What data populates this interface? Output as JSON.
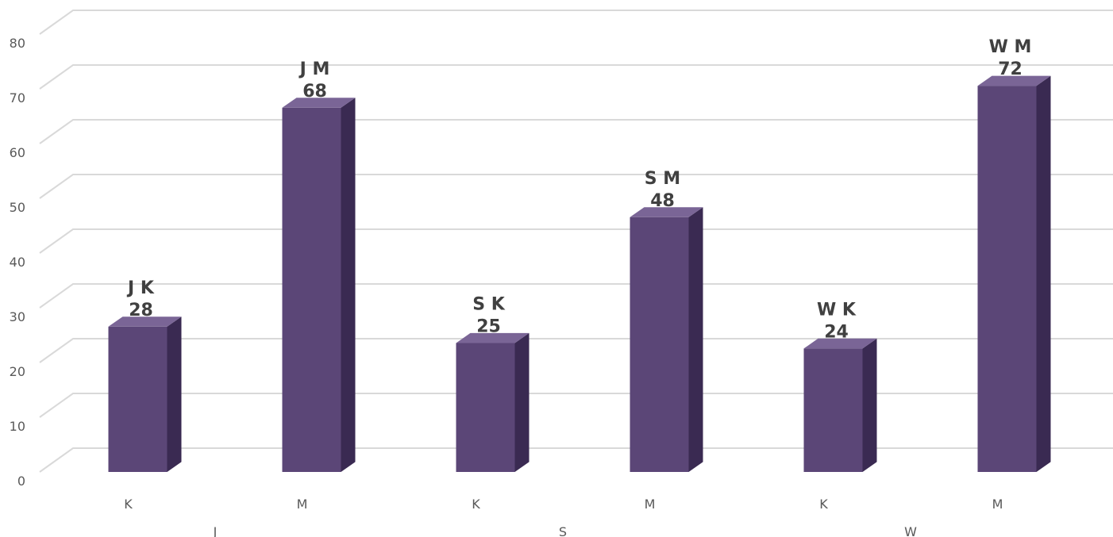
{
  "chart_data": {
    "type": "bar",
    "style": "3d-clustered-column",
    "groups": [
      {
        "label": "J",
        "categories": [
          "K",
          "M"
        ]
      },
      {
        "label": "S",
        "categories": [
          "K",
          "M"
        ]
      },
      {
        "label": "W",
        "categories": [
          "K",
          "M"
        ]
      }
    ],
    "categories": [
      "K",
      "M",
      "K",
      "M",
      "K",
      "M"
    ],
    "values": [
      28,
      68,
      25,
      48,
      24,
      72
    ],
    "data_labels": [
      {
        "name": "J K",
        "value": "28"
      },
      {
        "name": "J M",
        "value": "68"
      },
      {
        "name": "S K",
        "value": "25"
      },
      {
        "name": "S M",
        "value": "48"
      },
      {
        "name": "W K",
        "value": "24"
      },
      {
        "name": "W M",
        "value": "72"
      }
    ],
    "ylim": [
      0,
      80
    ],
    "yticks": [
      "0",
      "10",
      "20",
      "30",
      "40",
      "50",
      "60",
      "70",
      "80"
    ],
    "grid": true,
    "legend": "none",
    "colors": {
      "bar_front": "#5b4677",
      "bar_side": "#3a2a52",
      "bar_top": "#7a6596",
      "grid": "#d9d9d9"
    }
  }
}
